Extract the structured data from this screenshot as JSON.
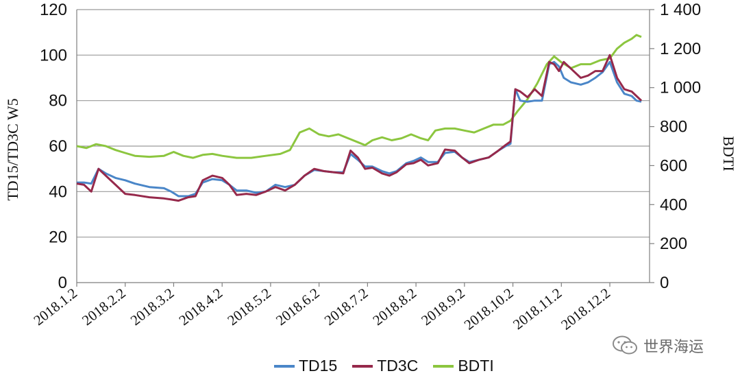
{
  "chart_data": {
    "type": "line",
    "xlabel": "",
    "ylabel_left": "TD15/TD3C W5",
    "ylabel_right": "BDTI",
    "x_ticks": [
      "2018.1.2",
      "2018.2.2",
      "2018.3.2",
      "2018.4.2",
      "2018.5.2",
      "2018.6.2",
      "2018.7.2",
      "2018.8.2",
      "2018.9.2",
      "2018.10.2",
      "2018.11.2",
      "2018.12.2"
    ],
    "y_left_ticks": [
      "0",
      "20",
      "40",
      "60",
      "80",
      "100",
      "120"
    ],
    "y_right_ticks": [
      "0",
      "200",
      "400",
      "600",
      "800",
      "1 000",
      "1 200",
      "1 400"
    ],
    "ylim_left": [
      0,
      120
    ],
    "ylim_right": [
      0,
      1400
    ],
    "x_range": [
      1,
      12.65
    ],
    "grid": true,
    "legend_position": "bottom",
    "series": [
      {
        "name": "TD15",
        "axis": "left",
        "color": "#4a86c8",
        "points": [
          [
            1.0,
            44
          ],
          [
            1.15,
            44
          ],
          [
            1.3,
            43.5
          ],
          [
            1.45,
            50
          ],
          [
            1.6,
            48
          ],
          [
            1.8,
            46
          ],
          [
            2.0,
            45
          ],
          [
            2.2,
            43.5
          ],
          [
            2.5,
            42
          ],
          [
            2.8,
            41.5
          ],
          [
            2.95,
            40
          ],
          [
            3.1,
            38
          ],
          [
            3.3,
            38
          ],
          [
            3.45,
            39
          ],
          [
            3.6,
            44
          ],
          [
            3.8,
            45.5
          ],
          [
            4.0,
            45
          ],
          [
            4.15,
            43
          ],
          [
            4.3,
            40.5
          ],
          [
            4.5,
            40.5
          ],
          [
            4.7,
            39.5
          ],
          [
            4.9,
            40
          ],
          [
            5.1,
            43
          ],
          [
            5.3,
            42
          ],
          [
            5.5,
            43
          ],
          [
            5.7,
            47
          ],
          [
            5.9,
            49.5
          ],
          [
            6.1,
            49
          ],
          [
            6.3,
            48.5
          ],
          [
            6.5,
            48.5
          ],
          [
            6.65,
            56.5
          ],
          [
            6.8,
            54
          ],
          [
            6.95,
            51
          ],
          [
            7.1,
            51
          ],
          [
            7.3,
            49
          ],
          [
            7.45,
            48
          ],
          [
            7.6,
            49
          ],
          [
            7.8,
            52.5
          ],
          [
            7.95,
            53.5
          ],
          [
            8.1,
            55
          ],
          [
            8.25,
            53
          ],
          [
            8.45,
            53
          ],
          [
            8.6,
            57
          ],
          [
            8.8,
            57.5
          ],
          [
            8.95,
            55
          ],
          [
            9.1,
            53
          ],
          [
            9.3,
            54
          ],
          [
            9.5,
            55
          ],
          [
            9.7,
            58
          ],
          [
            9.85,
            60
          ],
          [
            9.95,
            61
          ],
          [
            10.05,
            85
          ],
          [
            10.15,
            80
          ],
          [
            10.3,
            79.5
          ],
          [
            10.45,
            80
          ],
          [
            10.6,
            80
          ],
          [
            10.75,
            96
          ],
          [
            10.85,
            97
          ],
          [
            10.95,
            95
          ],
          [
            11.05,
            90
          ],
          [
            11.2,
            88
          ],
          [
            11.4,
            87
          ],
          [
            11.55,
            88
          ],
          [
            11.7,
            90
          ],
          [
            11.85,
            92.5
          ],
          [
            12.0,
            97
          ],
          [
            12.15,
            88
          ],
          [
            12.3,
            83
          ],
          [
            12.45,
            82
          ],
          [
            12.55,
            80
          ],
          [
            12.65,
            79.5
          ]
        ]
      },
      {
        "name": "TD3C",
        "axis": "left",
        "color": "#96294b",
        "points": [
          [
            1.0,
            43.5
          ],
          [
            1.15,
            43
          ],
          [
            1.3,
            40
          ],
          [
            1.45,
            50
          ],
          [
            1.6,
            47
          ],
          [
            1.8,
            43
          ],
          [
            2.0,
            39
          ],
          [
            2.2,
            38.5
          ],
          [
            2.5,
            37.5
          ],
          [
            2.8,
            37
          ],
          [
            2.95,
            36.5
          ],
          [
            3.1,
            36
          ],
          [
            3.3,
            37.5
          ],
          [
            3.45,
            38
          ],
          [
            3.6,
            45
          ],
          [
            3.8,
            47
          ],
          [
            4.0,
            46
          ],
          [
            4.15,
            43
          ],
          [
            4.3,
            38.5
          ],
          [
            4.5,
            39
          ],
          [
            4.7,
            38.5
          ],
          [
            4.9,
            40
          ],
          [
            5.1,
            42
          ],
          [
            5.3,
            40.5
          ],
          [
            5.5,
            43
          ],
          [
            5.7,
            47
          ],
          [
            5.9,
            50
          ],
          [
            6.1,
            49
          ],
          [
            6.3,
            48.5
          ],
          [
            6.5,
            48
          ],
          [
            6.65,
            58
          ],
          [
            6.8,
            55
          ],
          [
            6.95,
            50
          ],
          [
            7.1,
            50.5
          ],
          [
            7.3,
            48
          ],
          [
            7.45,
            47
          ],
          [
            7.6,
            48.5
          ],
          [
            7.8,
            52
          ],
          [
            7.95,
            52.5
          ],
          [
            8.1,
            54
          ],
          [
            8.25,
            51.5
          ],
          [
            8.45,
            52.5
          ],
          [
            8.6,
            58.5
          ],
          [
            8.8,
            58
          ],
          [
            8.95,
            55
          ],
          [
            9.1,
            52.5
          ],
          [
            9.3,
            54
          ],
          [
            9.5,
            55
          ],
          [
            9.7,
            58
          ],
          [
            9.85,
            60.5
          ],
          [
            9.95,
            62
          ],
          [
            10.05,
            85
          ],
          [
            10.15,
            84
          ],
          [
            10.3,
            81.5
          ],
          [
            10.45,
            85
          ],
          [
            10.6,
            82
          ],
          [
            10.75,
            97
          ],
          [
            10.85,
            96
          ],
          [
            10.95,
            93
          ],
          [
            11.05,
            97
          ],
          [
            11.2,
            94
          ],
          [
            11.4,
            90
          ],
          [
            11.55,
            91
          ],
          [
            11.7,
            93
          ],
          [
            11.85,
            93
          ],
          [
            12.0,
            100
          ],
          [
            12.15,
            90
          ],
          [
            12.3,
            85
          ],
          [
            12.45,
            84
          ],
          [
            12.55,
            82
          ],
          [
            12.65,
            80
          ]
        ]
      },
      {
        "name": "BDTI",
        "axis": "right",
        "color": "#8cc63f",
        "points": [
          [
            1.0,
            700
          ],
          [
            1.2,
            690
          ],
          [
            1.4,
            710
          ],
          [
            1.6,
            700
          ],
          [
            1.8,
            680
          ],
          [
            2.0,
            665
          ],
          [
            2.2,
            650
          ],
          [
            2.5,
            645
          ],
          [
            2.8,
            650
          ],
          [
            3.0,
            670
          ],
          [
            3.2,
            650
          ],
          [
            3.4,
            640
          ],
          [
            3.6,
            655
          ],
          [
            3.8,
            660
          ],
          [
            4.0,
            650
          ],
          [
            4.3,
            640
          ],
          [
            4.6,
            640
          ],
          [
            4.9,
            650
          ],
          [
            5.2,
            660
          ],
          [
            5.4,
            680
          ],
          [
            5.6,
            770
          ],
          [
            5.8,
            790
          ],
          [
            6.0,
            760
          ],
          [
            6.2,
            750
          ],
          [
            6.4,
            760
          ],
          [
            6.6,
            740
          ],
          [
            6.8,
            720
          ],
          [
            6.95,
            705
          ],
          [
            7.1,
            730
          ],
          [
            7.3,
            745
          ],
          [
            7.5,
            730
          ],
          [
            7.7,
            740
          ],
          [
            7.9,
            760
          ],
          [
            8.1,
            740
          ],
          [
            8.25,
            730
          ],
          [
            8.4,
            780
          ],
          [
            8.6,
            790
          ],
          [
            8.8,
            790
          ],
          [
            9.0,
            780
          ],
          [
            9.2,
            770
          ],
          [
            9.4,
            790
          ],
          [
            9.6,
            810
          ],
          [
            9.8,
            810
          ],
          [
            9.95,
            830
          ],
          [
            10.1,
            880
          ],
          [
            10.3,
            940
          ],
          [
            10.5,
            1020
          ],
          [
            10.7,
            1120
          ],
          [
            10.85,
            1160
          ],
          [
            11.0,
            1130
          ],
          [
            11.2,
            1100
          ],
          [
            11.4,
            1120
          ],
          [
            11.6,
            1120
          ],
          [
            11.8,
            1140
          ],
          [
            12.0,
            1150
          ],
          [
            12.15,
            1200
          ],
          [
            12.3,
            1230
          ],
          [
            12.45,
            1250
          ],
          [
            12.55,
            1270
          ],
          [
            12.65,
            1260
          ]
        ]
      }
    ]
  },
  "watermark": {
    "text": "世界海运",
    "icon": "wechat-icon"
  }
}
